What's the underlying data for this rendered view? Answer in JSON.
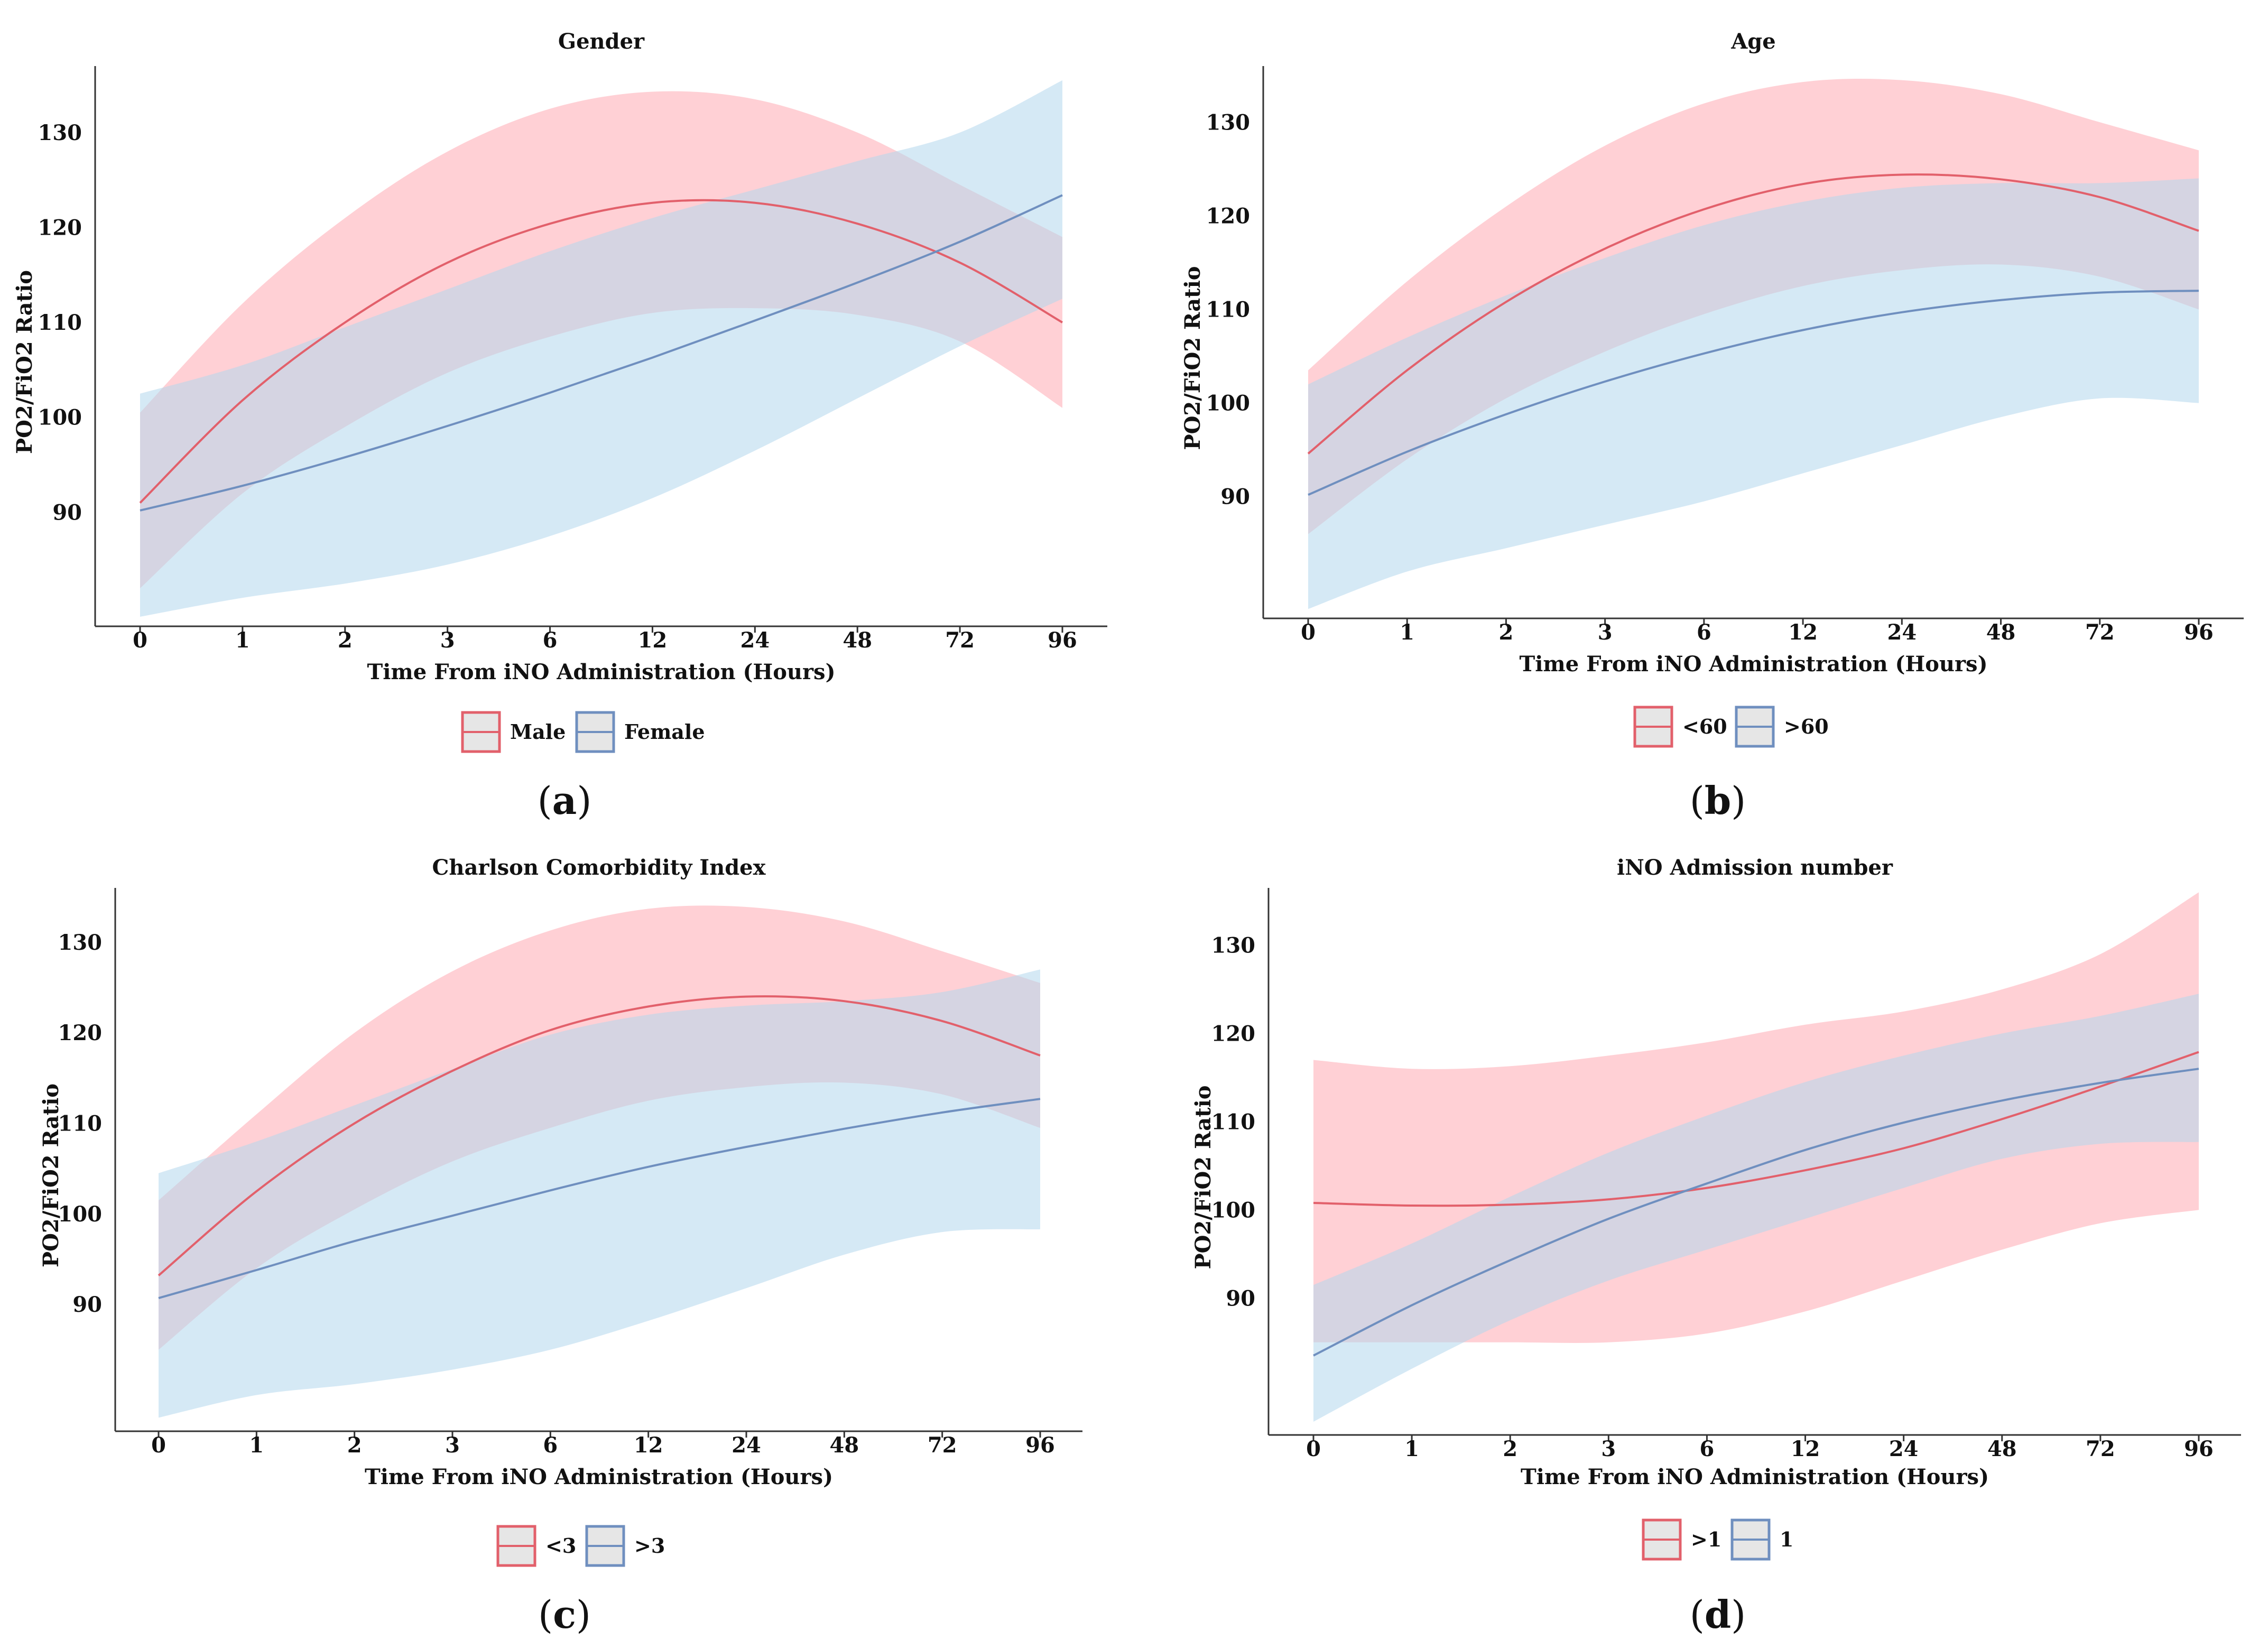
{
  "chart_data": [
    {
      "panel": "a",
      "type": "line",
      "title": "Gender",
      "xlabel": "Time From iNO Administration (Hours)",
      "ylabel": "PO2/FiO2 Ratio",
      "categories": [
        "0",
        "1",
        "2",
        "3",
        "6",
        "12",
        "24",
        "48",
        "72",
        "96"
      ],
      "yticks": [
        90,
        100,
        110,
        120,
        130
      ],
      "ylim": [
        78,
        137
      ],
      "series": [
        {
          "name": "Male",
          "color": "#e2606b",
          "fill": "#ffc8ce",
          "values": [
            91,
            101.8,
            110,
            116.3,
            120.4,
            122.6,
            122.6,
            120.4,
            116.3,
            110
          ],
          "upper": [
            100.5,
            112,
            121,
            128,
            132.5,
            134.3,
            133.5,
            130,
            124.5,
            119
          ],
          "lower": [
            82,
            92,
            99,
            104.7,
            108.5,
            111,
            111.5,
            110.8,
            108,
            101
          ]
        },
        {
          "name": "Female",
          "color": "#6f8fbf",
          "fill": "#b3d7ec",
          "values": [
            90.2,
            92.8,
            95.8,
            99.1,
            102.6,
            106.3,
            110.2,
            114.2,
            118.5,
            123.4
          ],
          "upper": [
            102.5,
            105.5,
            109.5,
            113.5,
            117.5,
            121,
            124,
            127,
            130,
            135.5
          ],
          "lower": [
            79,
            81,
            82.5,
            84.5,
            87.5,
            91.5,
            96.5,
            102,
            107.5,
            112.5
          ]
        }
      ],
      "legend": [
        "Male",
        "Female"
      ]
    },
    {
      "panel": "b",
      "type": "line",
      "title": "Age",
      "xlabel": "Time From iNO Administration (Hours)",
      "ylabel": "PO2/FiO2 Ratio",
      "categories": [
        "0",
        "1",
        "2",
        "3",
        "6",
        "12",
        "24",
        "48",
        "72",
        "96"
      ],
      "yticks": [
        90,
        100,
        110,
        120,
        130
      ],
      "ylim": [
        77,
        136
      ],
      "series": [
        {
          "name": "<60",
          "color": "#e2606b",
          "fill": "#ffc8ce",
          "values": [
            94.6,
            103.5,
            110.8,
            116.5,
            120.7,
            123.4,
            124.4,
            123.9,
            122,
            118.4
          ],
          "upper": [
            103.5,
            113,
            121,
            127.5,
            132,
            134.3,
            134.5,
            133,
            130,
            127
          ],
          "lower": [
            86,
            94,
            100.5,
            105.5,
            109.5,
            112.5,
            114.2,
            114.8,
            113.5,
            110
          ]
        },
        {
          "name": ">60",
          "color": "#6f8fbf",
          "fill": "#b3d7ec",
          "values": [
            90.2,
            94.8,
            98.8,
            102.3,
            105.3,
            107.8,
            109.7,
            111,
            111.8,
            112
          ],
          "upper": [
            102,
            107,
            111.5,
            115.5,
            119,
            121.5,
            123,
            123.5,
            123.5,
            124
          ],
          "lower": [
            78,
            82,
            84.5,
            87,
            89.5,
            92.5,
            95.5,
            98.5,
            100.5,
            100
          ]
        }
      ],
      "legend": [
        "<60",
        ">60"
      ]
    },
    {
      "panel": "c",
      "type": "line",
      "title": "Charlson Comorbidity Index",
      "xlabel": "Time From iNO Administration (Hours)",
      "ylabel": "PO2/FiO2 Ratio",
      "categories": [
        "0",
        "1",
        "2",
        "3",
        "6",
        "12",
        "24",
        "48",
        "72",
        "96"
      ],
      "yticks": [
        90,
        100,
        110,
        120,
        130
      ],
      "ylim": [
        76,
        136
      ],
      "series": [
        {
          "name": "<3",
          "color": "#e2606b",
          "fill": "#ffc8ce",
          "values": [
            93.2,
            102.5,
            110,
            115.8,
            120.3,
            122.9,
            124,
            123.5,
            121.3,
            117.5
          ],
          "upper": [
            101.5,
            111,
            120,
            126.8,
            131.3,
            133.7,
            133.9,
            132.3,
            129,
            125.5
          ],
          "lower": [
            85,
            94,
            100.5,
            105.8,
            109.5,
            112.5,
            114,
            114.5,
            113.2,
            109.5
          ]
        },
        {
          "name": ">3",
          "color": "#6f8fbf",
          "fill": "#b3d7ec",
          "values": [
            90.7,
            93.8,
            97,
            99.8,
            102.6,
            105.2,
            107.4,
            109.4,
            111.2,
            112.7
          ],
          "upper": [
            104.5,
            108,
            112,
            116,
            119.8,
            122,
            123,
            123.5,
            124.5,
            127
          ],
          "lower": [
            77.5,
            80,
            81.2,
            82.8,
            85,
            88.2,
            91.8,
            95.5,
            98,
            98.3
          ]
        }
      ],
      "legend": [
        "<3",
        ">3"
      ]
    },
    {
      "panel": "d",
      "type": "line",
      "title": "iNO Admission number",
      "xlabel": "Time From iNO Administration (Hours)",
      "ylabel": "PO2/FiO2 Ratio",
      "categories": [
        "0",
        "1",
        "2",
        "3",
        "6",
        "12",
        "24",
        "48",
        "72",
        "96"
      ],
      "yticks": [
        90,
        100,
        110,
        120,
        130
      ],
      "ylim": [
        74.5,
        136.5
      ],
      "series": [
        {
          "name": ">1",
          "color": "#e2606b",
          "fill": "#ffc8ce",
          "values": [
            100.8,
            100.5,
            100.6,
            101.2,
            102.5,
            104.5,
            107,
            110.3,
            114,
            117.9
          ],
          "upper": [
            117,
            116,
            116.3,
            117.5,
            119,
            121,
            122.5,
            125,
            129,
            136
          ],
          "lower": [
            85,
            85,
            85,
            85,
            86,
            88.5,
            92,
            95.5,
            98.5,
            100
          ]
        },
        {
          "name": "1",
          "color": "#6f8fbf",
          "fill": "#b3d7ec",
          "values": [
            83.5,
            89.2,
            94.3,
            99,
            103,
            106.8,
            109.9,
            112.4,
            114.4,
            116
          ],
          "upper": [
            91.5,
            96.2,
            101.5,
            106.5,
            110.7,
            114.5,
            117.5,
            120,
            122,
            124.5
          ],
          "lower": [
            76,
            82,
            87.5,
            92,
            95.5,
            99,
            102.5,
            105.8,
            107.5,
            107.7
          ]
        }
      ],
      "legend": [
        ">1",
        "1"
      ]
    }
  ],
  "panel_labels": [
    "a",
    "b",
    "c",
    "d"
  ]
}
